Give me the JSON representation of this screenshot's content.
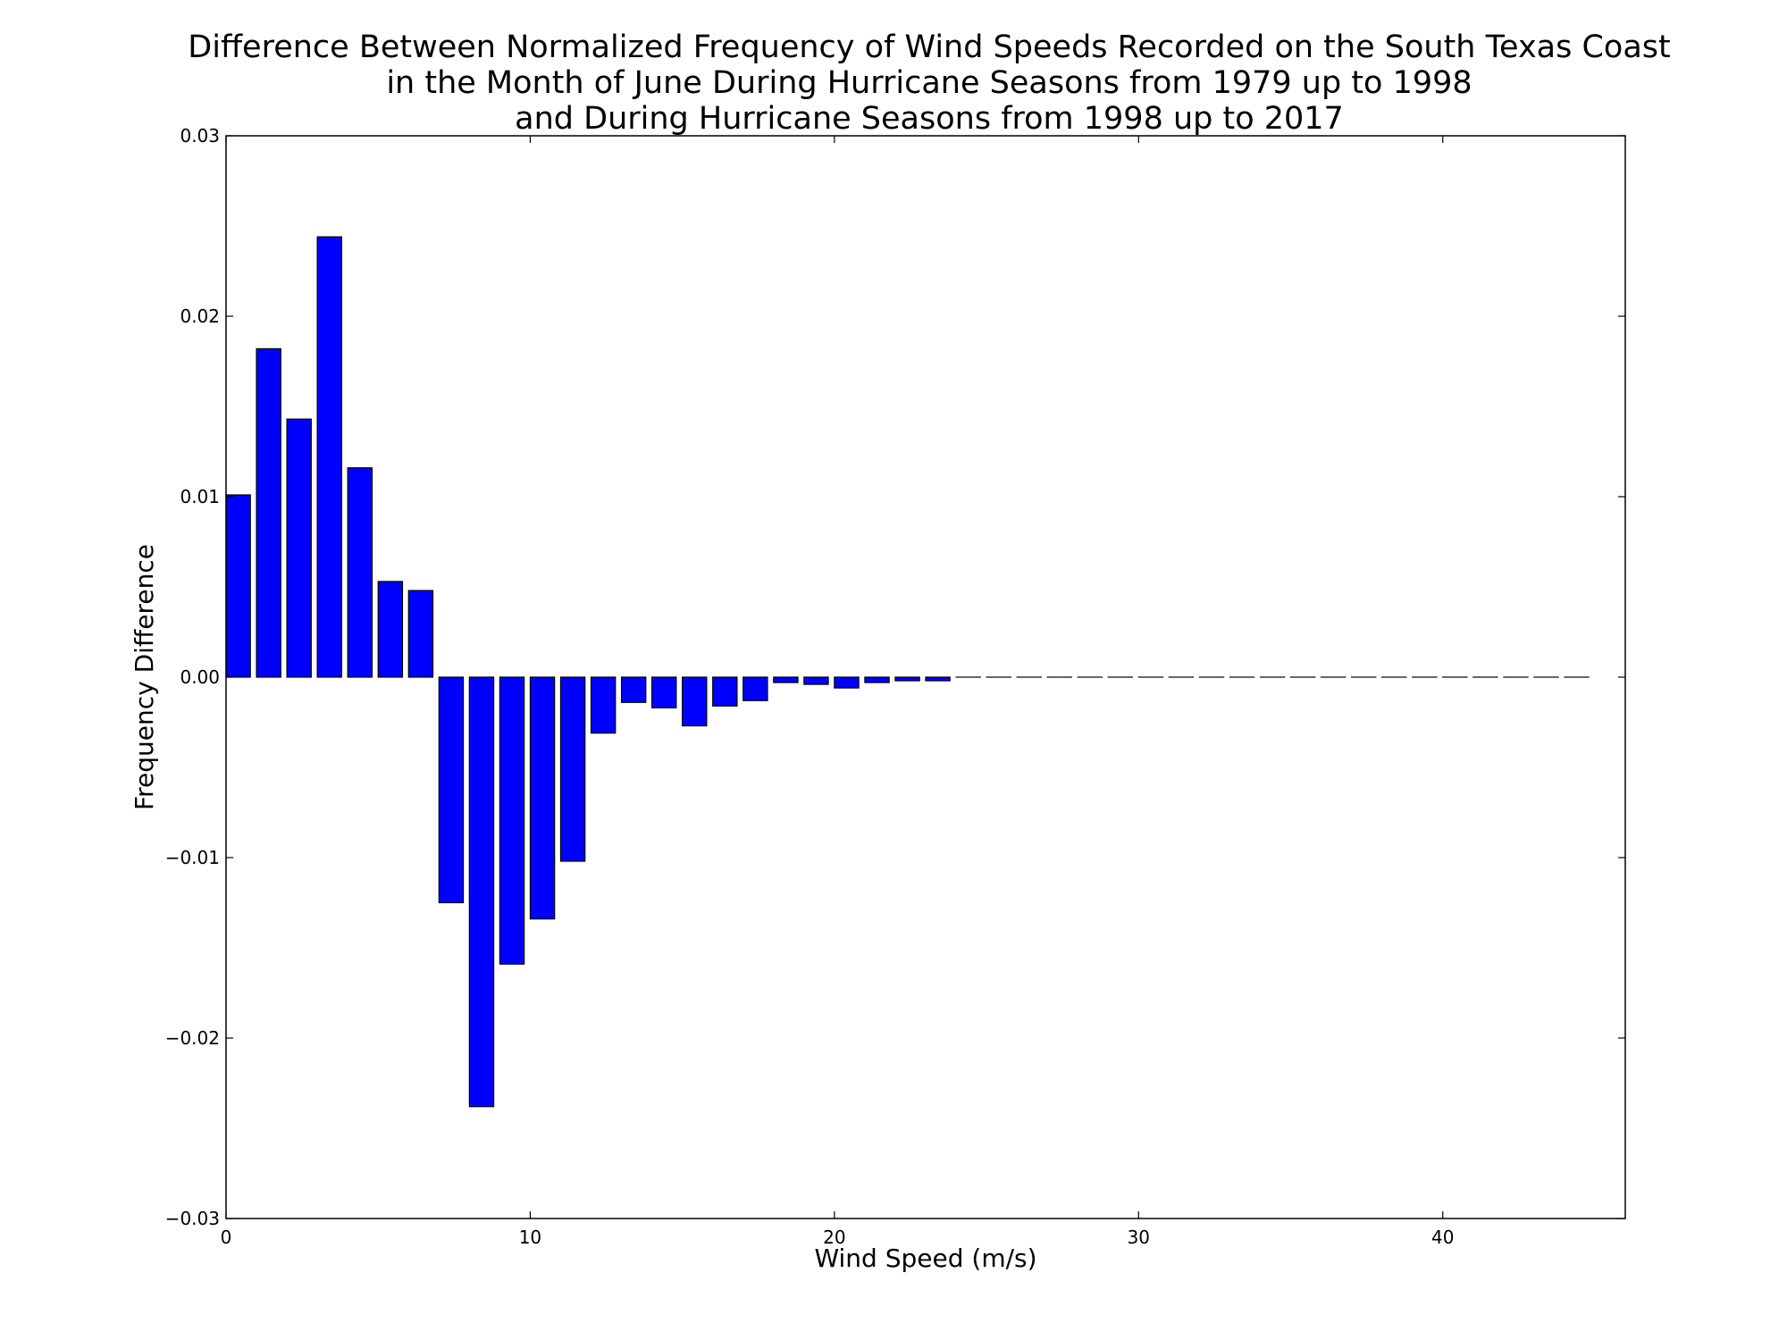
{
  "chart_data": {
    "type": "bar",
    "title_lines": [
      "Difference Between Normalized Frequency of Wind Speeds Recorded on the South Texas Coast",
      "in the Month of June During Hurricane Seasons from 1979 up to 1998",
      "and During Hurricane Seasons from 1998 up to 2017"
    ],
    "xlabel": "Wind Speed (m/s)",
    "ylabel": "Frequency Difference",
    "xlim": [
      0,
      46
    ],
    "ylim": [
      -0.03,
      0.03
    ],
    "xticks": [
      0,
      10,
      20,
      30,
      40
    ],
    "xtick_labels": [
      "0",
      "10",
      "20",
      "30",
      "40"
    ],
    "yticks": [
      0.03,
      0.02,
      0.01,
      0.0,
      -0.01,
      -0.02,
      -0.03
    ],
    "ytick_labels": [
      "0.03",
      "0.02",
      "0.01",
      "0.00",
      "−0.01",
      "−0.02",
      "−0.03"
    ],
    "bar_width": 0.8,
    "bar_color": "#0000ff",
    "edge_color": "#000000",
    "grid": false,
    "legend": false,
    "x": [
      0,
      1,
      2,
      3,
      4,
      5,
      6,
      7,
      8,
      9,
      10,
      11,
      12,
      13,
      14,
      15,
      16,
      17,
      18,
      19,
      20,
      21,
      22,
      23,
      24,
      25,
      26,
      27,
      28,
      29,
      30,
      31,
      32,
      33,
      34,
      35,
      36,
      37,
      38,
      39,
      40,
      41,
      42,
      43,
      44
    ],
    "values": [
      0.0101,
      0.0182,
      0.0143,
      0.0244,
      0.0116,
      0.0053,
      0.0048,
      -0.0125,
      -0.0238,
      -0.0159,
      -0.0134,
      -0.0102,
      -0.0031,
      -0.0014,
      -0.0017,
      -0.0027,
      -0.0016,
      -0.0013,
      -0.0003,
      -0.0004,
      -0.0006,
      -0.0003,
      -0.0002,
      -0.0002,
      0,
      0,
      0,
      0,
      0,
      0,
      0,
      0,
      0,
      0,
      0,
      0,
      0,
      0,
      0,
      0,
      0,
      0,
      0,
      0,
      0
    ]
  }
}
